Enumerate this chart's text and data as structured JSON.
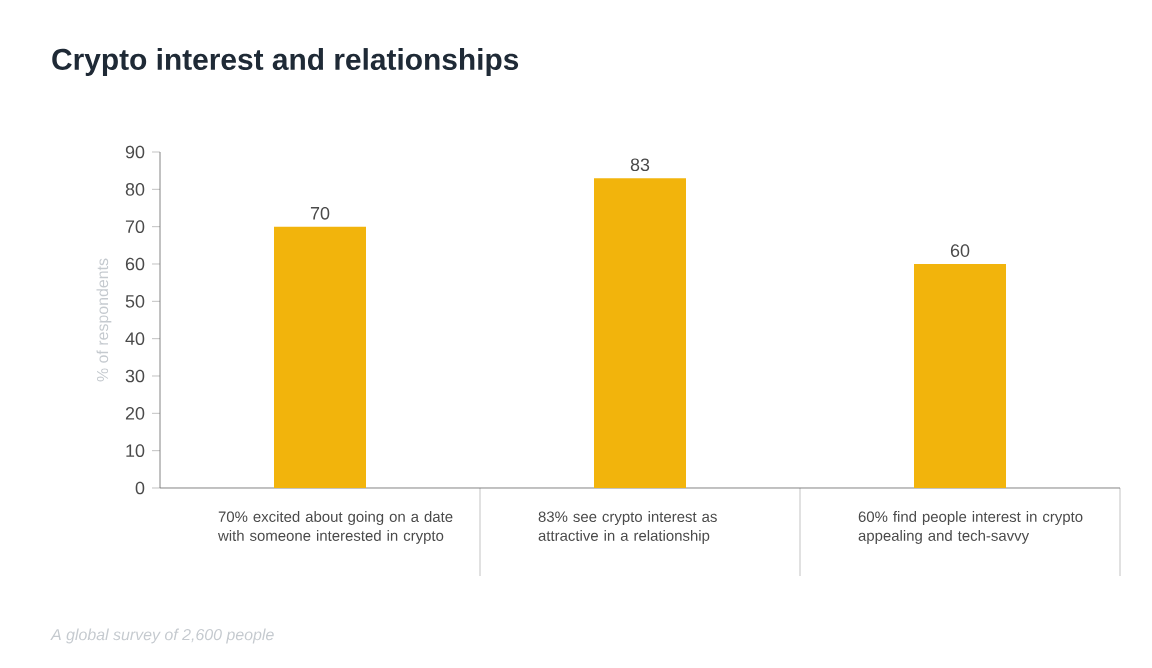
{
  "chart_data": {
    "type": "bar",
    "title": "Crypto interest and relationships",
    "ylabel": "% of respondents",
    "categories": [
      "70% excited about going on a date with someone interested in crypto",
      "83% see crypto interest as attractive in a relationship",
      "60% find people interest in crypto appealing and tech-savvy"
    ],
    "values": [
      70,
      83,
      60
    ],
    "color": "#f2b40c",
    "data_labels": true,
    "ylim": [
      0,
      90
    ],
    "yticks": [
      0,
      10,
      20,
      30,
      40,
      50,
      60,
      70,
      80,
      90
    ],
    "annotations": [
      "A global survey of 2,600 people"
    ]
  }
}
